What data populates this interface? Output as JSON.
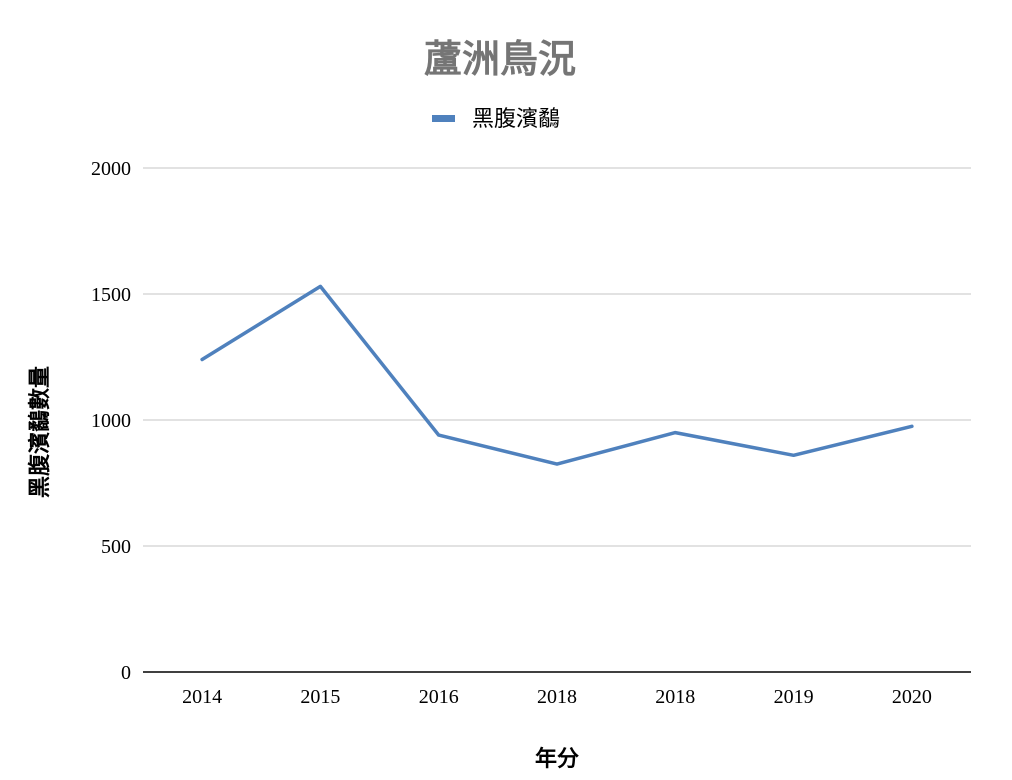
{
  "chart_data": {
    "type": "line",
    "title": "蘆洲鳥況",
    "xlabel": "年分",
    "ylabel": "黑腹濱鷸數量",
    "categories": [
      "2014",
      "2015",
      "2016",
      "2018",
      "2018",
      "2019",
      "2020"
    ],
    "series": [
      {
        "name": "黑腹濱鷸",
        "values": [
          1240,
          1530,
          940,
          825,
          950,
          860,
          975
        ]
      }
    ],
    "ylim": [
      0,
      2000
    ],
    "yticks": [
      "0",
      "500",
      "1000",
      "1500",
      "2000"
    ],
    "grid": true,
    "legend": "top-center",
    "colors": {
      "series": "#4f81bd",
      "title": "#757575",
      "grid": "#d0d0d0",
      "axis": "#000000"
    }
  }
}
